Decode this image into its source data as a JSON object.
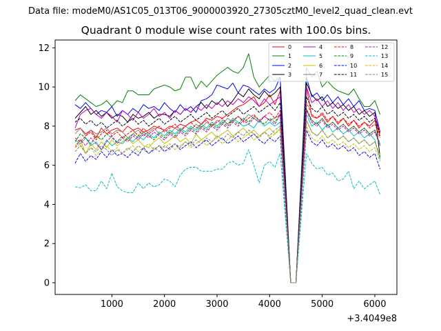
{
  "figure": {
    "suptitle": "Data file: modeM0/AS1C05_013T06_9000003920_27305cztM0_level2_quad_clean.evt"
  },
  "chart_data": {
    "type": "line",
    "title": "Quadrant 0 module wise count rates with 100.0s bins.",
    "xlabel": "",
    "ylabel": "",
    "x_offset_label": "+3.4049e8",
    "xlim": [
      -80,
      6420
    ],
    "ylim": [
      -0.6,
      12.4
    ],
    "xticks": [
      1000,
      2000,
      3000,
      4000,
      5000,
      6000
    ],
    "yticks": [
      0,
      2,
      4,
      6,
      8,
      10,
      12
    ],
    "legend_position": "top-right",
    "x": [
      300,
      400,
      500,
      600,
      700,
      800,
      900,
      1000,
      1100,
      1200,
      1300,
      1400,
      1500,
      1600,
      1700,
      1800,
      1900,
      2000,
      2100,
      2200,
      2300,
      2400,
      2500,
      2600,
      2700,
      2800,
      2900,
      3000,
      3100,
      3200,
      3300,
      3400,
      3500,
      3600,
      3700,
      3800,
      3900,
      4000,
      4100,
      4200,
      4300,
      4400,
      4500,
      4600,
      4700,
      4800,
      4900,
      5000,
      5100,
      5200,
      5300,
      5400,
      5500,
      5600,
      5700,
      5800,
      5900,
      6000,
      6100
    ],
    "series": [
      {
        "name": "0",
        "color": "#ff0000",
        "dash": "solid",
        "values": [
          7.8,
          7.9,
          7.6,
          7.8,
          7.4,
          7.9,
          7.6,
          7.8,
          7.9,
          7.7,
          8.0,
          7.8,
          7.9,
          7.7,
          7.8,
          8.0,
          7.9,
          7.8,
          8.0,
          7.9,
          8.1,
          8.0,
          8.2,
          8.3,
          8.1,
          8.4,
          8.3,
          8.5,
          8.4,
          8.6,
          8.8,
          9.0,
          9.1,
          9.3,
          9.5,
          9.0,
          9.2,
          9.6,
          9.1,
          9.8,
          5.0,
          0.0,
          0.0,
          5.0,
          10.0,
          8.5,
          8.4,
          8.6,
          8.2,
          8.5,
          8.1,
          8.4,
          8.0,
          8.3,
          7.9,
          8.2,
          8.0,
          8.3,
          7.5
        ]
      },
      {
        "name": "1",
        "color": "#008000",
        "dash": "solid",
        "values": [
          9.3,
          9.6,
          9.4,
          9.2,
          9.0,
          9.1,
          9.3,
          9.0,
          9.3,
          9.2,
          9.8,
          9.8,
          9.6,
          9.6,
          9.6,
          9.9,
          10.0,
          10.1,
          10.0,
          9.8,
          9.9,
          10.5,
          10.5,
          9.9,
          10.3,
          10.0,
          10.3,
          10.6,
          10.8,
          11.0,
          10.8,
          10.7,
          11.0,
          11.7,
          10.5,
          10.0,
          10.3,
          10.6,
          10.3,
          10.5,
          5.5,
          0.0,
          0.0,
          5.5,
          11.0,
          10.5,
          10.8,
          10.0,
          10.3,
          10.0,
          9.8,
          9.7,
          9.6,
          9.9,
          9.4,
          9.0,
          9.0,
          9.3,
          8.6
        ]
      },
      {
        "name": "2",
        "color": "#0000ff",
        "dash": "solid",
        "values": [
          9.1,
          8.9,
          9.2,
          8.9,
          8.6,
          8.8,
          8.7,
          9.0,
          8.5,
          8.8,
          8.6,
          8.9,
          8.7,
          9.1,
          8.9,
          9.0,
          8.8,
          9.2,
          8.9,
          8.7,
          9.1,
          8.8,
          9.0,
          8.7,
          9.3,
          9.4,
          9.6,
          10.1,
          10.0,
          9.9,
          10.2,
          9.7,
          10.1,
          10.0,
          9.8,
          9.6,
          9.9,
          9.7,
          9.9,
          10.5,
          5.2,
          0.0,
          0.0,
          5.2,
          10.5,
          9.5,
          9.7,
          9.3,
          9.6,
          9.2,
          9.5,
          9.1,
          9.4,
          9.0,
          9.3,
          8.8,
          8.9,
          8.8,
          7.7
        ]
      },
      {
        "name": "3",
        "color": "#000000",
        "dash": "solid",
        "values": [
          8.4,
          8.7,
          9.0,
          8.6,
          8.8,
          8.5,
          8.7,
          8.4,
          8.6,
          8.5,
          8.2,
          8.6,
          8.4,
          8.5,
          8.7,
          8.4,
          8.6,
          8.6,
          8.5,
          8.8,
          8.6,
          8.9,
          8.7,
          9.0,
          9.2,
          8.9,
          9.3,
          9.1,
          9.4,
          9.0,
          9.3,
          9.7,
          9.5,
          9.9,
          9.6,
          9.4,
          9.8,
          9.5,
          9.7,
          10.0,
          5.0,
          0.0,
          0.0,
          5.0,
          10.2,
          9.6,
          9.3,
          9.5,
          9.0,
          9.2,
          8.9,
          9.1,
          8.8,
          9.0,
          8.6,
          8.8,
          8.5,
          8.7,
          6.4
        ]
      },
      {
        "name": "4",
        "color": "#bf00bf",
        "dash": "solid",
        "values": [
          7.9,
          8.6,
          8.8,
          8.9,
          8.6,
          8.4,
          8.7,
          8.5,
          8.2,
          8.8,
          8.6,
          8.3,
          8.7,
          8.4,
          8.6,
          8.9,
          8.5,
          8.7,
          8.4,
          8.8,
          8.6,
          8.9,
          8.7,
          9.0,
          8.8,
          9.1,
          8.9,
          9.2,
          9.0,
          9.3,
          9.1,
          9.4,
          9.2,
          9.5,
          9.3,
          9.0,
          9.4,
          9.1,
          9.3,
          9.5,
          4.8,
          0.0,
          0.0,
          4.8,
          10.0,
          9.2,
          9.4,
          9.0,
          9.3,
          8.9,
          9.2,
          8.8,
          9.1,
          8.7,
          8.9,
          8.6,
          8.8,
          8.5,
          7.7
        ]
      },
      {
        "name": "5",
        "color": "#00bfbf",
        "dash": "solid",
        "values": [
          7.3,
          7.1,
          7.4,
          7.0,
          7.2,
          6.8,
          7.3,
          7.0,
          7.2,
          7.1,
          7.4,
          7.2,
          7.5,
          7.3,
          7.6,
          7.4,
          7.7,
          7.5,
          7.8,
          7.6,
          7.9,
          7.7,
          8.0,
          7.8,
          8.1,
          7.9,
          8.2,
          8.0,
          8.3,
          8.1,
          8.4,
          8.2,
          8.0,
          8.1,
          7.9,
          8.3,
          8.0,
          8.2,
          8.0,
          8.2,
          4.2,
          0.0,
          0.0,
          4.2,
          8.6,
          8.0,
          8.2,
          7.8,
          8.1,
          7.7,
          7.9,
          7.6,
          7.8,
          7.5,
          7.7,
          7.4,
          7.6,
          7.3,
          6.3
        ]
      },
      {
        "name": "6",
        "color": "#bfbf00",
        "dash": "solid",
        "values": [
          7.0,
          7.3,
          6.6,
          7.1,
          6.8,
          7.2,
          6.9,
          7.3,
          7.0,
          7.2,
          7.4,
          7.1,
          7.3,
          7.0,
          6.9,
          7.2,
          7.4,
          7.1,
          7.3,
          7.5,
          7.2,
          7.4,
          7.1,
          7.6,
          7.3,
          7.5,
          7.7,
          7.4,
          7.6,
          7.8,
          7.5,
          7.7,
          7.9,
          7.6,
          7.8,
          7.5,
          7.7,
          7.9,
          7.6,
          7.9,
          4.0,
          0.0,
          0.0,
          4.0,
          8.3,
          7.7,
          7.5,
          7.8,
          7.4,
          7.6,
          7.3,
          7.5,
          7.2,
          7.4,
          7.1,
          7.3,
          7.0,
          7.2,
          6.5
        ]
      },
      {
        "name": "7",
        "color": "#808080",
        "dash": "solid",
        "values": [
          7.6,
          7.9,
          7.5,
          7.8,
          7.6,
          7.7,
          7.9,
          7.6,
          7.8,
          7.7,
          7.4,
          7.6,
          7.8,
          7.5,
          7.7,
          7.9,
          7.6,
          7.8,
          7.6,
          7.9,
          7.7,
          8.0,
          7.8,
          8.1,
          7.9,
          8.2,
          8.0,
          8.3,
          8.1,
          8.4,
          8.2,
          8.5,
          8.3,
          8.6,
          8.4,
          8.2,
          8.5,
          8.3,
          8.4,
          8.6,
          4.4,
          0.0,
          0.0,
          4.4,
          8.8,
          8.3,
          8.1,
          8.4,
          8.0,
          8.2,
          7.9,
          8.1,
          7.8,
          8.0,
          7.7,
          7.9,
          7.6,
          7.8,
          7.0
        ]
      },
      {
        "name": "8",
        "color": "#ff0000",
        "dash": "dashed",
        "values": [
          7.4,
          7.2,
          7.5,
          7.7,
          7.3,
          7.6,
          7.8,
          7.5,
          7.7,
          7.4,
          7.6,
          7.8,
          7.5,
          7.9,
          7.6,
          7.8,
          8.0,
          7.7,
          7.9,
          8.1,
          7.8,
          8.0,
          8.2,
          7.9,
          8.1,
          8.3,
          8.0,
          8.2,
          8.4,
          8.1,
          8.3,
          8.5,
          8.2,
          8.4,
          8.6,
          8.3,
          8.5,
          8.7,
          8.4,
          8.8,
          4.5,
          0.0,
          0.0,
          4.5,
          9.2,
          8.6,
          8.4,
          8.7,
          8.3,
          8.5,
          8.2,
          8.4,
          8.1,
          8.3,
          8.0,
          8.2,
          7.9,
          8.1,
          7.4
        ]
      },
      {
        "name": "9",
        "color": "#008000",
        "dash": "dashed",
        "values": [
          7.2,
          7.6,
          7.4,
          7.1,
          7.5,
          7.3,
          7.6,
          7.4,
          7.2,
          7.5,
          7.3,
          7.6,
          7.4,
          7.7,
          7.5,
          7.3,
          7.6,
          7.4,
          7.7,
          7.5,
          7.8,
          7.6,
          7.9,
          7.7,
          8.0,
          7.8,
          8.1,
          7.9,
          8.2,
          8.0,
          8.3,
          8.1,
          8.4,
          8.2,
          8.5,
          8.3,
          8.1,
          8.4,
          8.2,
          8.6,
          4.4,
          0.0,
          0.0,
          4.4,
          8.9,
          8.3,
          8.1,
          8.4,
          8.0,
          8.2,
          7.9,
          8.1,
          7.8,
          8.0,
          7.7,
          7.9,
          7.6,
          7.8,
          7.1
        ]
      },
      {
        "name": "10",
        "color": "#0000ff",
        "dash": "dashed",
        "values": [
          6.1,
          6.6,
          6.2,
          6.5,
          6.3,
          6.7,
          6.4,
          6.8,
          6.5,
          6.6,
          6.4,
          6.7,
          6.5,
          6.9,
          6.6,
          6.8,
          7.0,
          6.7,
          6.9,
          7.1,
          6.8,
          7.0,
          7.2,
          6.9,
          7.1,
          7.3,
          7.0,
          7.2,
          7.4,
          7.1,
          7.3,
          7.5,
          7.2,
          7.4,
          7.6,
          7.3,
          7.1,
          7.4,
          7.2,
          7.5,
          3.8,
          0.0,
          0.0,
          3.8,
          7.8,
          7.2,
          7.0,
          7.3,
          6.9,
          7.1,
          6.8,
          7.0,
          6.7,
          6.9,
          6.5,
          6.7,
          6.4,
          6.6,
          5.8
        ]
      },
      {
        "name": "11",
        "color": "#000000",
        "dash": "dashed",
        "values": [
          8.2,
          8.4,
          8.1,
          8.3,
          8.0,
          8.2,
          7.9,
          8.1,
          8.3,
          8.0,
          8.2,
          8.4,
          8.1,
          8.3,
          8.0,
          8.2,
          8.4,
          8.1,
          8.3,
          8.5,
          8.2,
          8.4,
          8.6,
          8.3,
          8.5,
          8.7,
          8.4,
          8.6,
          8.8,
          8.5,
          8.7,
          8.9,
          8.6,
          8.8,
          9.0,
          8.7,
          8.9,
          9.1,
          8.8,
          9.2,
          4.7,
          0.0,
          0.0,
          4.7,
          9.5,
          8.9,
          8.7,
          9.0,
          8.6,
          8.8,
          8.5,
          8.7,
          8.4,
          8.6,
          8.3,
          8.5,
          8.2,
          8.4,
          7.6
        ]
      },
      {
        "name": "12",
        "color": "#bf00bf",
        "dash": "dashed",
        "values": [
          6.9,
          7.3,
          7.0,
          7.4,
          7.1,
          6.8,
          7.2,
          7.5,
          7.1,
          7.4,
          7.2,
          7.5,
          7.3,
          7.6,
          7.4,
          7.7,
          7.5,
          7.3,
          7.6,
          7.4,
          7.7,
          7.5,
          7.8,
          7.6,
          7.9,
          7.7,
          8.0,
          7.8,
          8.1,
          7.9,
          8.2,
          8.0,
          8.3,
          8.1,
          8.4,
          8.2,
          8.5,
          8.3,
          8.1,
          8.6,
          4.4,
          0.0,
          0.0,
          4.4,
          8.8,
          8.2,
          8.0,
          8.3,
          7.9,
          8.1,
          7.8,
          8.0,
          7.7,
          7.9,
          7.6,
          7.8,
          7.5,
          7.7,
          7.0
        ]
      },
      {
        "name": "13",
        "color": "#00bfbf",
        "dash": "dashed",
        "values": [
          4.9,
          4.85,
          5.0,
          4.7,
          4.7,
          5.2,
          4.8,
          5.6,
          4.9,
          4.7,
          4.6,
          4.6,
          5.1,
          4.8,
          5.1,
          4.9,
          5.0,
          5.3,
          5.2,
          4.9,
          5.5,
          5.8,
          5.9,
          5.9,
          5.7,
          5.7,
          5.7,
          5.8,
          5.8,
          6.1,
          6.2,
          6.0,
          6.1,
          6.8,
          6.0,
          5.1,
          6.0,
          6.2,
          5.9,
          6.6,
          3.3,
          0.0,
          0.0,
          3.3,
          6.6,
          6.1,
          5.8,
          5.9,
          5.5,
          5.6,
          5.2,
          5.3,
          5.7,
          4.8,
          5.2,
          4.8,
          5.0,
          5.2,
          4.5
        ]
      },
      {
        "name": "14",
        "color": "#bfbf00",
        "dash": "dashed",
        "values": [
          6.9,
          7.1,
          6.6,
          6.9,
          6.5,
          6.8,
          7.0,
          6.7,
          6.9,
          6.6,
          6.8,
          7.0,
          6.7,
          6.9,
          7.1,
          6.8,
          7.0,
          6.9,
          7.1,
          6.8,
          7.0,
          7.2,
          6.9,
          7.1,
          7.3,
          7.0,
          7.2,
          7.4,
          7.1,
          7.3,
          7.5,
          7.2,
          7.4,
          7.6,
          7.3,
          7.5,
          7.7,
          7.4,
          7.6,
          7.8,
          4.0,
          0.0,
          0.0,
          4.0,
          8.0,
          7.4,
          7.2,
          7.5,
          7.1,
          7.3,
          7.0,
          7.2,
          6.9,
          7.1,
          6.8,
          7.0,
          6.7,
          6.9,
          6.2
        ]
      },
      {
        "name": "15",
        "color": "#808080",
        "dash": "dashed",
        "values": [
          6.7,
          7.0,
          6.6,
          6.9,
          6.7,
          7.0,
          6.8,
          6.5,
          6.8,
          6.6,
          6.9,
          6.7,
          7.0,
          6.8,
          6.6,
          6.9,
          6.7,
          7.0,
          6.8,
          7.1,
          6.9,
          7.2,
          7.0,
          7.3,
          7.1,
          7.4,
          7.2,
          7.5,
          7.3,
          7.6,
          7.4,
          7.7,
          7.5,
          7.8,
          7.6,
          7.4,
          7.7,
          7.5,
          7.8,
          8.0,
          4.1,
          0.0,
          0.0,
          4.1,
          8.3,
          7.7,
          7.5,
          7.8,
          7.4,
          7.6,
          7.3,
          7.5,
          7.2,
          7.4,
          7.1,
          7.3,
          7.0,
          7.2,
          6.4
        ]
      }
    ]
  }
}
